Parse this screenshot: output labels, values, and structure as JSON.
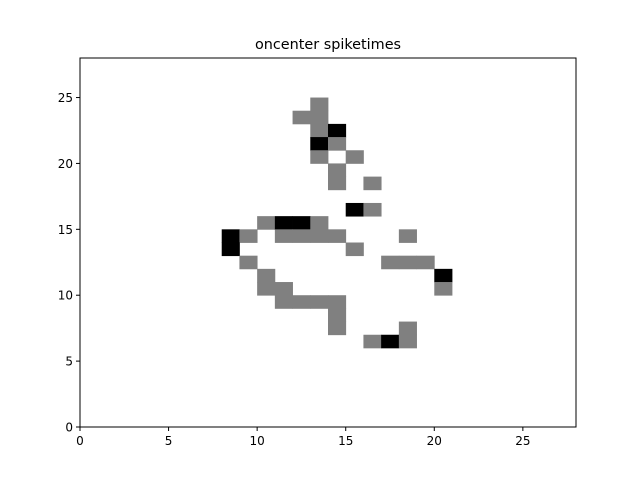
{
  "chart_data": {
    "type": "heatmap",
    "title": "oncenter spiketimes",
    "xlabel": "",
    "ylabel": "",
    "xlim": [
      0,
      28
    ],
    "ylim": [
      0,
      28
    ],
    "grid": false,
    "xticks": [
      "0",
      "5",
      "10",
      "15",
      "20",
      "25"
    ],
    "yticks": [
      "0",
      "5",
      "10",
      "15",
      "20",
      "25"
    ],
    "colors": {
      "gray": "#808080",
      "black": "#000000"
    },
    "cells": [
      {
        "x": 13,
        "y": 24,
        "value": "gray"
      },
      {
        "x": 12,
        "y": 23,
        "value": "gray"
      },
      {
        "x": 13,
        "y": 23,
        "value": "gray"
      },
      {
        "x": 13,
        "y": 22,
        "value": "gray"
      },
      {
        "x": 14,
        "y": 22,
        "value": "black"
      },
      {
        "x": 13,
        "y": 21,
        "value": "black"
      },
      {
        "x": 14,
        "y": 21,
        "value": "gray"
      },
      {
        "x": 13,
        "y": 20,
        "value": "gray"
      },
      {
        "x": 15,
        "y": 20,
        "value": "gray"
      },
      {
        "x": 14,
        "y": 19,
        "value": "gray"
      },
      {
        "x": 14,
        "y": 18,
        "value": "gray"
      },
      {
        "x": 16,
        "y": 18,
        "value": "gray"
      },
      {
        "x": 15,
        "y": 16,
        "value": "black"
      },
      {
        "x": 16,
        "y": 16,
        "value": "gray"
      },
      {
        "x": 10,
        "y": 15,
        "value": "gray"
      },
      {
        "x": 11,
        "y": 15,
        "value": "black"
      },
      {
        "x": 12,
        "y": 15,
        "value": "black"
      },
      {
        "x": 13,
        "y": 15,
        "value": "gray"
      },
      {
        "x": 8,
        "y": 14,
        "value": "black"
      },
      {
        "x": 9,
        "y": 14,
        "value": "gray"
      },
      {
        "x": 11,
        "y": 14,
        "value": "gray"
      },
      {
        "x": 12,
        "y": 14,
        "value": "gray"
      },
      {
        "x": 13,
        "y": 14,
        "value": "gray"
      },
      {
        "x": 14,
        "y": 14,
        "value": "gray"
      },
      {
        "x": 18,
        "y": 14,
        "value": "gray"
      },
      {
        "x": 8,
        "y": 13,
        "value": "black"
      },
      {
        "x": 15,
        "y": 13,
        "value": "gray"
      },
      {
        "x": 9,
        "y": 12,
        "value": "gray"
      },
      {
        "x": 17,
        "y": 12,
        "value": "gray"
      },
      {
        "x": 18,
        "y": 12,
        "value": "gray"
      },
      {
        "x": 19,
        "y": 12,
        "value": "gray"
      },
      {
        "x": 10,
        "y": 11,
        "value": "gray"
      },
      {
        "x": 20,
        "y": 11,
        "value": "black"
      },
      {
        "x": 10,
        "y": 10,
        "value": "gray"
      },
      {
        "x": 11,
        "y": 10,
        "value": "gray"
      },
      {
        "x": 20,
        "y": 10,
        "value": "gray"
      },
      {
        "x": 11,
        "y": 9,
        "value": "gray"
      },
      {
        "x": 12,
        "y": 9,
        "value": "gray"
      },
      {
        "x": 13,
        "y": 9,
        "value": "gray"
      },
      {
        "x": 14,
        "y": 9,
        "value": "gray"
      },
      {
        "x": 14,
        "y": 8,
        "value": "gray"
      },
      {
        "x": 14,
        "y": 7,
        "value": "gray"
      },
      {
        "x": 18,
        "y": 7,
        "value": "gray"
      },
      {
        "x": 16,
        "y": 6,
        "value": "gray"
      },
      {
        "x": 17,
        "y": 6,
        "value": "black"
      },
      {
        "x": 18,
        "y": 6,
        "value": "gray"
      }
    ]
  }
}
